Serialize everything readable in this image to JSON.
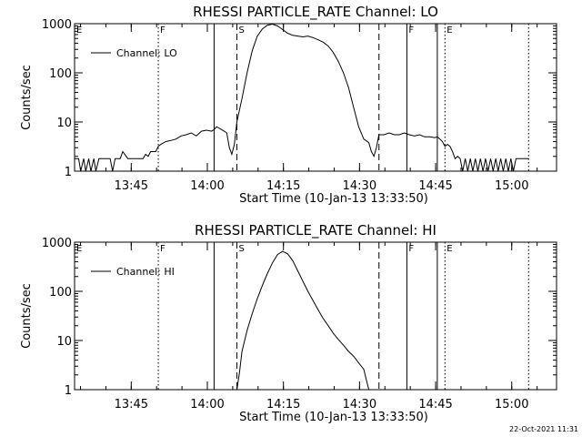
{
  "footer_timestamp": "22-Oct-2021 11:31",
  "colors": {
    "background": "#ffffff",
    "ink": "#000000"
  },
  "chart_data": [
    {
      "type": "line",
      "title": "RHESSI PARTICLE_RATE Channel: LO",
      "xlabel": "Start Time (10-Jan-13 13:33:50)",
      "ylabel": "Counts/sec",
      "yscale": "log",
      "x_unit": "minutes after 13:33:50",
      "xlim": [
        0,
        95
      ],
      "ylim": [
        1,
        1000
      ],
      "grid": false,
      "legend_position": "top-left",
      "x_ticks": [
        {
          "x": 11.17,
          "label": "13:45"
        },
        {
          "x": 26.17,
          "label": "14:00"
        },
        {
          "x": 41.17,
          "label": "14:15"
        },
        {
          "x": 56.17,
          "label": "14:30"
        },
        {
          "x": 71.17,
          "label": "14:45"
        },
        {
          "x": 86.17,
          "label": "15:00"
        }
      ],
      "y_ticks": [
        {
          "y": 1,
          "label": "1"
        },
        {
          "y": 10,
          "label": "10"
        },
        {
          "y": 100,
          "label": "100"
        },
        {
          "y": 1000,
          "label": "1000"
        }
      ],
      "markers": [
        {
          "x": 0.0,
          "label": "E",
          "style": "dotted"
        },
        {
          "x": 16.5,
          "label": "F",
          "style": "dotted"
        },
        {
          "x": 27.5,
          "label": "",
          "style": "solid"
        },
        {
          "x": 32.0,
          "label": "S",
          "style": "dashed"
        },
        {
          "x": 60.0,
          "label": "",
          "style": "dashed"
        },
        {
          "x": 65.5,
          "label": "F",
          "style": "solid"
        },
        {
          "x": 71.5,
          "label": "",
          "style": "solid"
        },
        {
          "x": 73.0,
          "label": "E",
          "style": "dotted"
        },
        {
          "x": 89.5,
          "label": "",
          "style": "dotted"
        }
      ],
      "series": [
        {
          "name": "Channel: LO",
          "x": [
            0,
            0.8,
            1.2,
            1.8,
            2.2,
            2.8,
            3.2,
            3.8,
            4.2,
            4.8,
            5.2,
            6,
            7,
            7.5,
            8,
            8.5,
            9,
            9.5,
            10.5,
            11,
            11.5,
            12,
            12.5,
            13.5,
            14,
            14.5,
            15,
            15.5,
            16,
            16.5,
            17,
            18,
            19,
            20,
            21,
            22,
            23,
            24,
            25,
            26,
            27,
            27.5,
            28,
            29,
            30,
            30.5,
            31,
            31.5,
            32,
            33,
            34,
            35,
            36,
            37,
            38,
            39,
            40,
            41,
            42,
            43,
            44,
            45,
            46,
            47,
            48,
            49,
            50,
            51,
            52,
            53,
            54,
            55,
            56,
            57,
            58,
            58.5,
            59,
            59.5,
            60,
            60.5,
            61,
            62,
            63,
            64,
            65,
            66,
            67,
            68,
            69,
            70,
            71,
            71.5,
            72,
            72.5,
            73,
            73.5,
            74,
            74.5,
            75,
            75.5,
            76,
            76.5,
            77,
            77.5,
            78,
            78.5,
            79,
            79.5,
            80,
            80.5,
            81,
            81.5,
            82,
            82.5,
            83,
            83.5,
            84,
            84.5,
            85,
            85.5,
            86,
            86.5,
            87,
            88,
            89.5
          ],
          "values": [
            1.8,
            1.8,
            1,
            1.8,
            1,
            1.8,
            1,
            1.8,
            1,
            1.8,
            1.8,
            1.8,
            1.8,
            1,
            1.8,
            1.8,
            1.8,
            2.5,
            1.8,
            1.8,
            1.8,
            1.8,
            1.8,
            1.8,
            2.2,
            2,
            2.5,
            2.5,
            2.5,
            3.2,
            3.5,
            4,
            4.2,
            4.5,
            5.2,
            5.5,
            6,
            5.2,
            6.5,
            6.8,
            6.5,
            7,
            8,
            7,
            6,
            3,
            2.2,
            3.5,
            10,
            30,
            100,
            280,
            550,
            780,
            930,
            980,
            900,
            760,
            640,
            580,
            560,
            540,
            560,
            520,
            470,
            420,
            350,
            260,
            170,
            100,
            50,
            20,
            8,
            4.5,
            3.8,
            2.5,
            2,
            3,
            5.5,
            5.5,
            5.5,
            6,
            5.5,
            5.5,
            6,
            5.5,
            5.2,
            5.5,
            5,
            5,
            4.8,
            5,
            4.5,
            4,
            3.2,
            3.5,
            3.2,
            2.5,
            1.8,
            2,
            1.8,
            1,
            1.8,
            1,
            1.8,
            1,
            1.8,
            1,
            1.8,
            1,
            1.8,
            1,
            1.8,
            1,
            1.8,
            1,
            1.8,
            1,
            1.8,
            1,
            1.8,
            1,
            1.8,
            1.8,
            1.8
          ]
        }
      ]
    },
    {
      "type": "line",
      "title": "RHESSI PARTICLE_RATE Channel: HI",
      "xlabel": "Start Time (10-Jan-13 13:33:50)",
      "ylabel": "Counts/sec",
      "yscale": "log",
      "x_unit": "minutes after 13:33:50",
      "xlim": [
        0,
        95
      ],
      "ylim": [
        1,
        1000
      ],
      "grid": false,
      "legend_position": "top-left",
      "x_ticks": [
        {
          "x": 11.17,
          "label": "13:45"
        },
        {
          "x": 26.17,
          "label": "14:00"
        },
        {
          "x": 41.17,
          "label": "14:15"
        },
        {
          "x": 56.17,
          "label": "14:30"
        },
        {
          "x": 71.17,
          "label": "14:45"
        },
        {
          "x": 86.17,
          "label": "15:00"
        }
      ],
      "y_ticks": [
        {
          "y": 1,
          "label": "1"
        },
        {
          "y": 10,
          "label": "10"
        },
        {
          "y": 100,
          "label": "100"
        },
        {
          "y": 1000,
          "label": "1000"
        }
      ],
      "markers": [
        {
          "x": 0.0,
          "label": "E",
          "style": "dotted"
        },
        {
          "x": 16.5,
          "label": "F",
          "style": "dotted"
        },
        {
          "x": 27.5,
          "label": "",
          "style": "solid"
        },
        {
          "x": 32.0,
          "label": "S",
          "style": "dashed"
        },
        {
          "x": 60.0,
          "label": "",
          "style": "dashed"
        },
        {
          "x": 65.5,
          "label": "F",
          "style": "solid"
        },
        {
          "x": 71.5,
          "label": "",
          "style": "solid"
        },
        {
          "x": 73.0,
          "label": "E",
          "style": "dotted"
        },
        {
          "x": 89.5,
          "label": "",
          "style": "dotted"
        }
      ],
      "series": [
        {
          "name": "Channel: HI",
          "x": [
            32,
            32.5,
            33,
            34,
            35,
            36,
            37,
            38,
            39,
            40,
            41,
            42,
            43,
            44,
            45,
            46,
            47,
            48,
            49,
            50,
            51,
            52,
            53,
            54,
            55,
            56,
            57,
            57.5,
            58
          ],
          "values": [
            1,
            2.2,
            6,
            16,
            35,
            70,
            130,
            230,
            380,
            560,
            650,
            580,
            420,
            260,
            160,
            100,
            65,
            42,
            28,
            20,
            14,
            10.5,
            8,
            6,
            4.8,
            3.5,
            2.6,
            1.6,
            1
          ]
        }
      ]
    }
  ]
}
